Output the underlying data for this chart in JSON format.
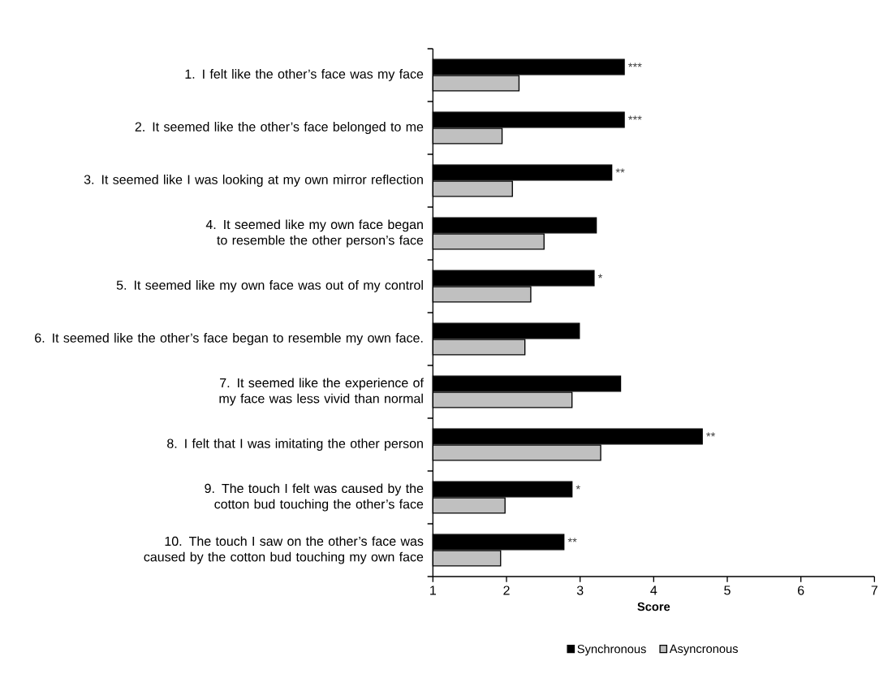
{
  "chart_data": {
    "type": "bar",
    "orientation": "horizontal",
    "xlabel": "Score",
    "categories": [
      "1. I felt like the other’s face was my face",
      "2. It seemed like the other’s face belonged to me",
      "3. It seemed like I was looking at my own mirror reflection",
      "4. It seemed like my own face began to resemble the other person’s face",
      "5. It seemed like my own face was out of my control",
      "6. It seemed like the other’s face began to resemble my own face.",
      "7. It seemed like the experience of my face was less vivid than normal",
      "8. I felt that I was imitating the other person",
      "9. The touch I felt was caused by the cotton bud touching the other’s face",
      "10. The touch I saw on the other’s face was caused by the cotton bud touching my own face"
    ],
    "series": [
      {
        "name": "Synchronous",
        "color": "#000000",
        "values": [
          3.6,
          3.6,
          3.43,
          3.22,
          3.19,
          2.99,
          3.55,
          4.66,
          2.89,
          2.78
        ]
      },
      {
        "name": "Asyncronous",
        "color": "#c0c0c0",
        "values": [
          2.17,
          1.94,
          2.08,
          2.51,
          2.33,
          2.25,
          2.89,
          3.28,
          1.98,
          1.92
        ]
      }
    ],
    "xlim": [
      1,
      7
    ],
    "xticks": [
      1,
      2,
      3,
      4,
      5,
      6,
      7
    ],
    "grid": false,
    "legend": "bottom",
    "annotations": [
      {
        "text": "***",
        "x": 3.6,
        "y": "1. I felt like the other’s face was my face"
      },
      {
        "text": "***",
        "x": 3.6,
        "y": "2. It seemed like the other’s face belonged to me"
      },
      {
        "text": "**",
        "x": 3.43,
        "y": "3. It seemed like I was looking at my own mirror reflection"
      },
      {
        "text": "*",
        "x": 3.19,
        "y": "5. It seemed like my own face was out of my control"
      },
      {
        "text": "**",
        "x": 4.66,
        "y": "8. I felt that I was imitating the other person"
      },
      {
        "text": "*",
        "x": 2.89,
        "y": "9. The touch I felt was caused by the cotton bud touching the other’s face"
      },
      {
        "text": "**",
        "x": 2.78,
        "y": "10. The touch I saw on the other’s face was caused by the cotton bud touching my own face"
      }
    ]
  }
}
